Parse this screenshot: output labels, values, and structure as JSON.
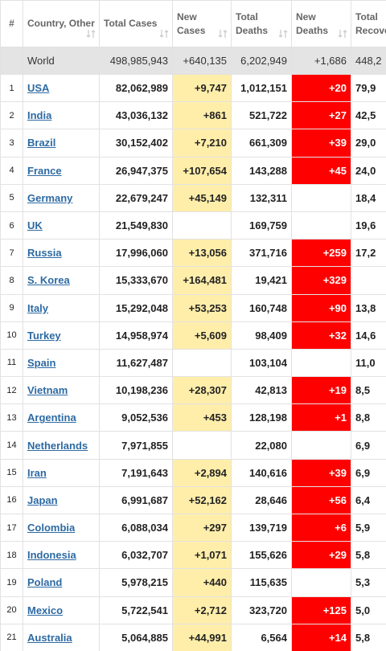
{
  "table": {
    "headers": [
      "#",
      "Country, Other",
      "Total Cases",
      "New Cases",
      "Total Deaths",
      "New Deaths",
      "Total Recove"
    ],
    "world": [
      "World",
      "498,985,943",
      "+640,135",
      "6,202,949",
      "+1,686",
      "448,2"
    ],
    "rows": [
      [
        "1",
        "USA",
        "82,062,989",
        "+9,747",
        "1,012,151",
        "+20",
        "79,9"
      ],
      [
        "2",
        "India",
        "43,036,132",
        "+861",
        "521,722",
        "+27",
        "42,5"
      ],
      [
        "3",
        "Brazil",
        "30,152,402",
        "+7,210",
        "661,309",
        "+39",
        "29,0"
      ],
      [
        "4",
        "France",
        "26,947,375",
        "+107,654",
        "143,288",
        "+45",
        "24,0"
      ],
      [
        "5",
        "Germany",
        "22,679,247",
        "+45,149",
        "132,311",
        null,
        "18,4"
      ],
      [
        "6",
        "UK",
        "21,549,830",
        null,
        "169,759",
        null,
        "19,6"
      ],
      [
        "7",
        "Russia",
        "17,996,060",
        "+13,056",
        "371,716",
        "+259",
        "17,2"
      ],
      [
        "8",
        "S. Korea",
        "15,333,670",
        "+164,481",
        "19,421",
        "+329",
        null
      ],
      [
        "9",
        "Italy",
        "15,292,048",
        "+53,253",
        "160,748",
        "+90",
        "13,8"
      ],
      [
        "10",
        "Turkey",
        "14,958,974",
        "+5,609",
        "98,409",
        "+32",
        "14,6"
      ],
      [
        "11",
        "Spain",
        "11,627,487",
        null,
        "103,104",
        null,
        "11,0"
      ],
      [
        "12",
        "Vietnam",
        "10,198,236",
        "+28,307",
        "42,813",
        "+19",
        "8,5"
      ],
      [
        "13",
        "Argentina",
        "9,052,536",
        "+453",
        "128,198",
        "+1",
        "8,8"
      ],
      [
        "14",
        "Netherlands",
        "7,971,855",
        null,
        "22,080",
        null,
        "6,9"
      ],
      [
        "15",
        "Iran",
        "7,191,643",
        "+2,894",
        "140,616",
        "+39",
        "6,9"
      ],
      [
        "16",
        "Japan",
        "6,991,687",
        "+52,162",
        "28,646",
        "+56",
        "6,4"
      ],
      [
        "17",
        "Colombia",
        "6,088,034",
        "+297",
        "139,719",
        "+6",
        "5,9"
      ],
      [
        "18",
        "Indonesia",
        "6,032,707",
        "+1,071",
        "155,626",
        "+29",
        "5,8"
      ],
      [
        "19",
        "Poland",
        "5,978,215",
        "+440",
        "115,635",
        null,
        "5,3"
      ],
      [
        "20",
        "Mexico",
        "5,722,541",
        "+2,712",
        "323,720",
        "+125",
        "5,0"
      ],
      [
        "21",
        "Australia",
        "5,064,885",
        "+44,991",
        "6,564",
        "+14",
        "5,8"
      ]
    ]
  }
}
